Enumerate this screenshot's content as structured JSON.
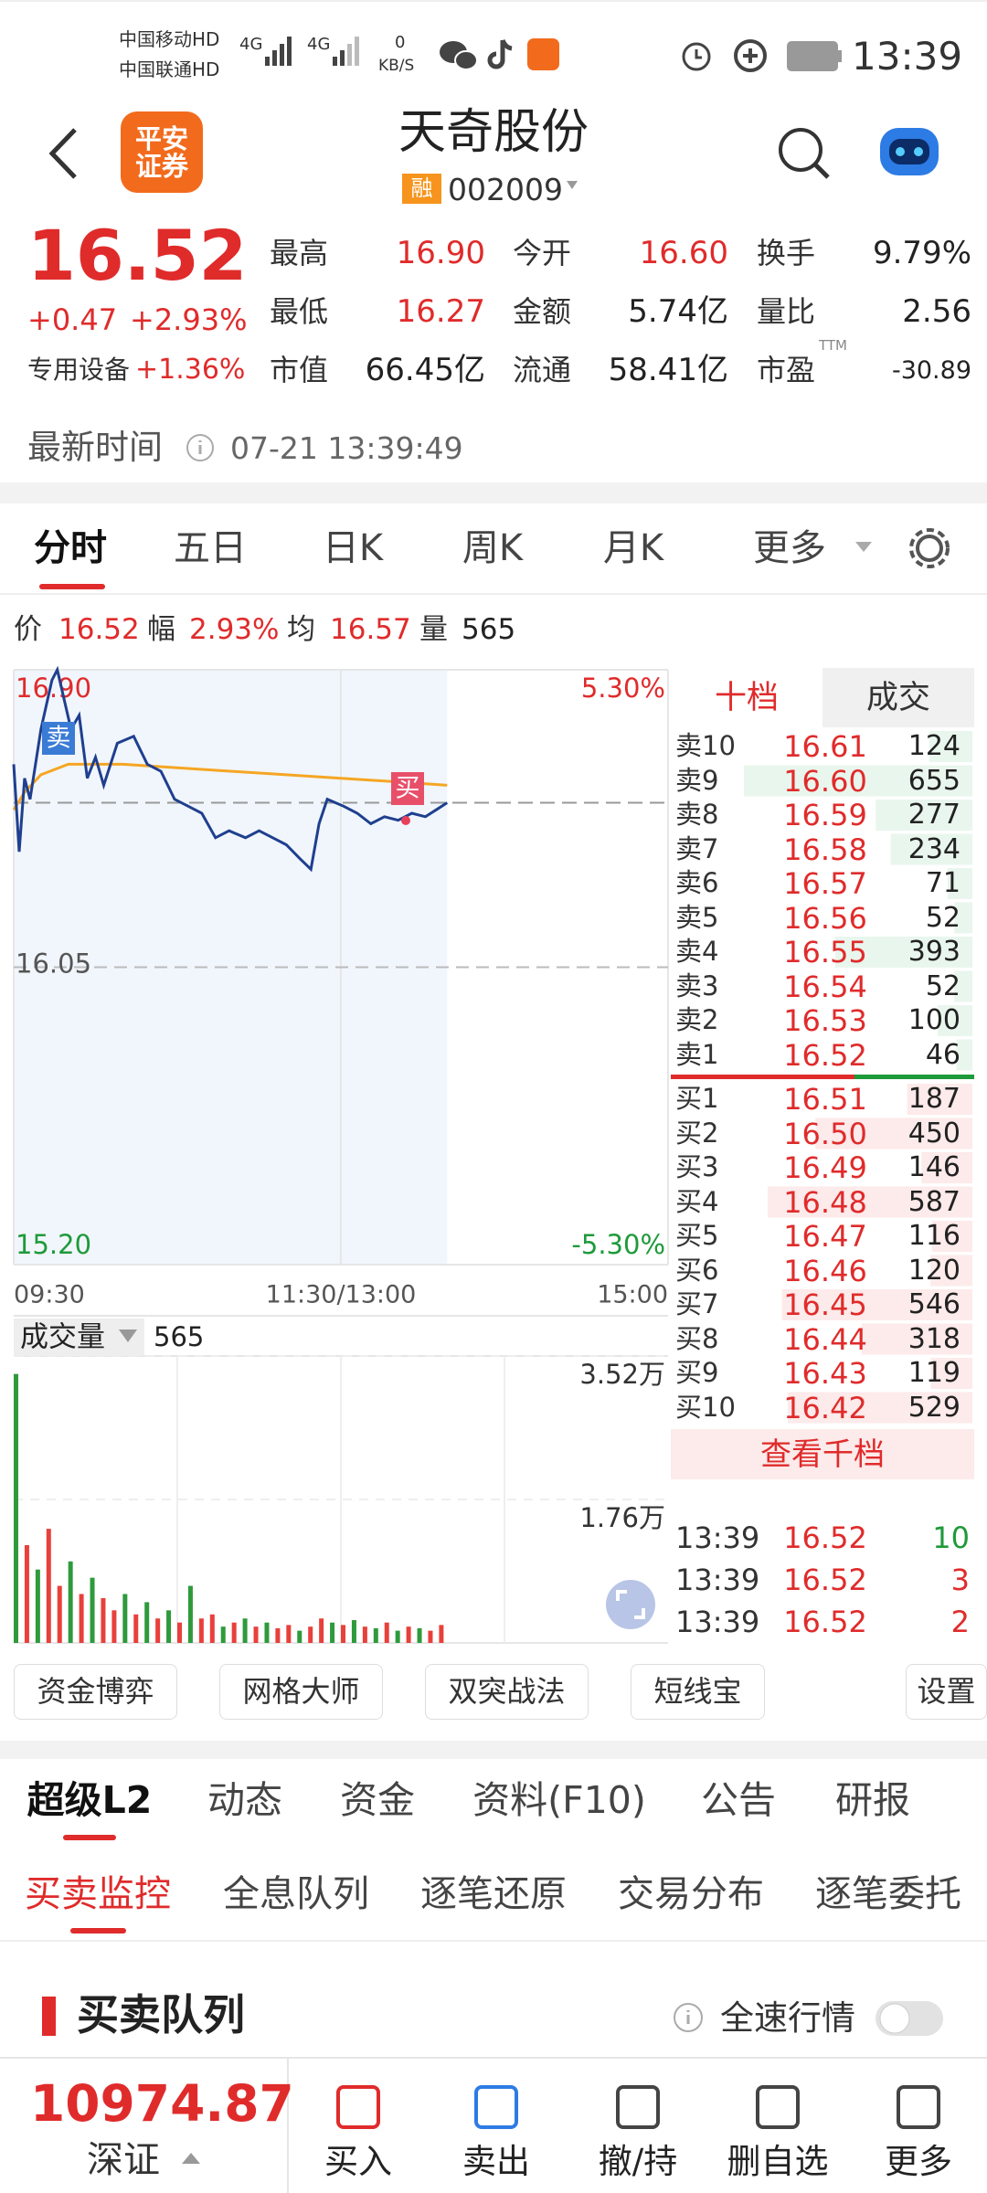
{
  "status_bar": {
    "carrier1": "中国移动HD",
    "carrier2": "中国联通HD",
    "net1": "4G",
    "net2": "4G",
    "speed": "0",
    "speed_unit": "KB/S",
    "battery": "72",
    "time": "13:39"
  },
  "header": {
    "logo": "平安证券",
    "title": "天奇股份",
    "margin_tag": "融",
    "code": "002009"
  },
  "quote": {
    "price": "16.52",
    "change": "+0.47",
    "change_pct": "+2.93%",
    "sector": "专用设备",
    "sector_pct": "+1.36%",
    "stats": [
      [
        {
          "label": "最高",
          "value": "16.90"
        },
        {
          "label": "今开",
          "value": "16.60"
        },
        {
          "label": "换手",
          "value": "9.79%"
        }
      ],
      [
        {
          "label": "最低",
          "value": "16.27"
        },
        {
          "label": "金额",
          "value": "5.74亿"
        },
        {
          "label": "量比",
          "value": "2.56"
        }
      ],
      [
        {
          "label": "市值",
          "value": "66.45亿"
        },
        {
          "label": "流通",
          "value": "58.41亿"
        },
        {
          "label": "市盈",
          "sup": "TTM",
          "value": "-30.89"
        }
      ]
    ]
  },
  "update": {
    "label": "最新时间",
    "time": "07-21 13:39:49"
  },
  "chart_tabs": [
    "分时",
    "五日",
    "日K",
    "周K",
    "月K",
    "更多"
  ],
  "info": [
    {
      "label": "价",
      "value": "16.52"
    },
    {
      "label": "幅",
      "value": "2.93%"
    },
    {
      "label": "均",
      "value": "16.57"
    },
    {
      "label": "量",
      "value": "565"
    }
  ],
  "chart_data": [
    {
      "type": "line",
      "annotations": [
        "卖",
        "买"
      ],
      "series": [
        {
          "color": "#1f3f8f",
          "x": [
            0,
            2,
            4,
            6,
            10,
            14,
            16,
            21,
            24,
            27,
            30,
            33,
            38,
            44,
            49,
            54,
            59,
            64,
            69,
            74,
            79,
            85,
            90,
            95,
            100,
            105,
            109,
            112,
            115,
            121,
            126,
            131,
            136,
            141,
            146,
            151,
            155,
            159
          ],
          "values": [
            16.63,
            16.38,
            16.59,
            16.53,
            16.73,
            16.87,
            16.9,
            16.73,
            16.77,
            16.59,
            16.65,
            16.57,
            16.69,
            16.71,
            16.63,
            16.61,
            16.53,
            16.51,
            16.49,
            16.42,
            16.44,
            16.42,
            16.44,
            16.42,
            16.4,
            16.36,
            16.33,
            16.46,
            16.53,
            16.51,
            16.49,
            16.46,
            16.48,
            16.47,
            16.49,
            16.48,
            16.5,
            16.52
          ]
        },
        {
          "color": "#f5a623",
          "x": [
            0,
            4,
            10,
            20,
            40,
            60,
            80,
            100,
            120,
            140,
            159
          ],
          "values": [
            16.5,
            16.55,
            16.6,
            16.63,
            16.63,
            16.62,
            16.61,
            16.6,
            16.59,
            16.58,
            16.57
          ]
        }
      ],
      "xlim": [
        0,
        240
      ],
      "xticks": [
        {
          "value": 0,
          "label": "09:30"
        },
        {
          "value": 120,
          "label": "11:30/13:00"
        },
        {
          "value": 240,
          "label": "15:00"
        }
      ],
      "ylim": [
        15.2,
        16.9
      ],
      "yticks": [
        {
          "value": 16.9,
          "label": "16.90"
        },
        16.05,
        {
          "value": 15.2,
          "label": "15.20"
        }
      ],
      "y2lim": [
        -5.3,
        5.3
      ],
      "y2ticks": [
        {
          "value": 5.3,
          "label": "5.30%"
        },
        {
          "value": -5.3,
          "label": "-5.30%"
        }
      ]
    },
    {
      "type": "bar",
      "title": "成交量",
      "latest": 565,
      "x": [
        0,
        4,
        8,
        12,
        16,
        20,
        24,
        28,
        32,
        36,
        40,
        44,
        48,
        52,
        56,
        60,
        64,
        68,
        72,
        76,
        80,
        84,
        88,
        92,
        96,
        100,
        104,
        108,
        112,
        116,
        120,
        124,
        128,
        132,
        136,
        140,
        144,
        148,
        152,
        156
      ],
      "values": [
        33000,
        12000,
        9000,
        14000,
        7000,
        10000,
        6000,
        8000,
        5500,
        4000,
        6000,
        3500,
        5000,
        3000,
        4000,
        2500,
        7000,
        3000,
        3500,
        2000,
        2500,
        3000,
        2000,
        2500,
        1800,
        2200,
        1500,
        2000,
        3000,
        2500,
        2200,
        2800,
        2000,
        1800,
        2500,
        1500,
        2000,
        1800,
        1500,
        2200
      ],
      "colors": [
        "#2e9a3c",
        "#e8403b",
        "#2e9a3c",
        "#e8403b",
        "#e8403b",
        "#2e9a3c",
        "#e8403b",
        "#2e9a3c",
        "#e8403b",
        "#e8403b",
        "#2e9a3c",
        "#e8403b",
        "#2e9a3c",
        "#e8403b",
        "#2e9a3c",
        "#e8403b",
        "#2e9a3c",
        "#e8403b",
        "#e8403b",
        "#2e9a3c",
        "#e8403b",
        "#2e9a3c",
        "#e8403b",
        "#2e9a3c",
        "#e8403b",
        "#e8403b",
        "#2e9a3c",
        "#e8403b",
        "#e8403b",
        "#2e9a3c",
        "#e8403b",
        "#2e9a3c",
        "#e8403b",
        "#2e9a3c",
        "#e8403b",
        "#2e9a3c",
        "#e8403b",
        "#2e9a3c",
        "#e8403b",
        "#e8403b"
      ],
      "xlim": [
        0,
        240
      ],
      "ylim": [
        0,
        35200
      ],
      "yticks": [
        {
          "value": 35200,
          "label": "3.52万"
        },
        {
          "value": 17600,
          "label": "1.76万"
        }
      ]
    }
  ],
  "order_book": {
    "tabs": [
      "十档",
      "成交"
    ],
    "asks": [
      {
        "label": "卖10",
        "price": "16.61",
        "volume": 124
      },
      {
        "label": "卖9",
        "price": "16.60",
        "volume": 655
      },
      {
        "label": "卖8",
        "price": "16.59",
        "volume": 277
      },
      {
        "label": "卖7",
        "price": "16.58",
        "volume": 234
      },
      {
        "label": "卖6",
        "price": "16.57",
        "volume": 71
      },
      {
        "label": "卖5",
        "price": "16.56",
        "volume": 52
      },
      {
        "label": "卖4",
        "price": "16.55",
        "volume": 393
      },
      {
        "label": "卖3",
        "price": "16.54",
        "volume": 52
      },
      {
        "label": "卖2",
        "price": "16.53",
        "volume": 100
      },
      {
        "label": "卖1",
        "price": "16.52",
        "volume": 46
      }
    ],
    "bids": [
      {
        "label": "买1",
        "price": "16.51",
        "volume": 187
      },
      {
        "label": "买2",
        "price": "16.50",
        "volume": 450
      },
      {
        "label": "买3",
        "price": "16.49",
        "volume": 146
      },
      {
        "label": "买4",
        "price": "16.48",
        "volume": 587
      },
      {
        "label": "买5",
        "price": "16.47",
        "volume": 116
      },
      {
        "label": "买6",
        "price": "16.46",
        "volume": 120
      },
      {
        "label": "买7",
        "price": "16.45",
        "volume": 546
      },
      {
        "label": "买8",
        "price": "16.44",
        "volume": 318
      },
      {
        "label": "买9",
        "price": "16.43",
        "volume": 119
      },
      {
        "label": "买10",
        "price": "16.42",
        "volume": 529
      }
    ],
    "more": "查看千档",
    "trades": [
      {
        "time": "13:39",
        "price": "16.52",
        "volume": 10,
        "color": "#1e9a3a"
      },
      {
        "time": "13:39",
        "price": "16.52",
        "volume": 3,
        "color": "#e02b2b"
      },
      {
        "time": "13:39",
        "price": "16.52",
        "volume": 2,
        "color": "#e02b2b"
      }
    ]
  },
  "tools": [
    "资金博弈",
    "网格大师",
    "双突战法",
    "短线宝",
    "设置"
  ],
  "section_tabs": [
    "超级L2",
    "动态",
    "资金",
    "资料(F10)",
    "公告",
    "研报"
  ],
  "sub_tabs": [
    "买卖监控",
    "全息队列",
    "逐笔还原",
    "交易分布",
    "逐笔委托"
  ],
  "queue": {
    "title": "买卖队列",
    "toggle_label": "全速行情"
  },
  "bottom": {
    "index_value": "10974.87",
    "index_name": "深证",
    "actions": [
      "买入",
      "卖出",
      "撤/持",
      "删自选",
      "更多"
    ]
  }
}
